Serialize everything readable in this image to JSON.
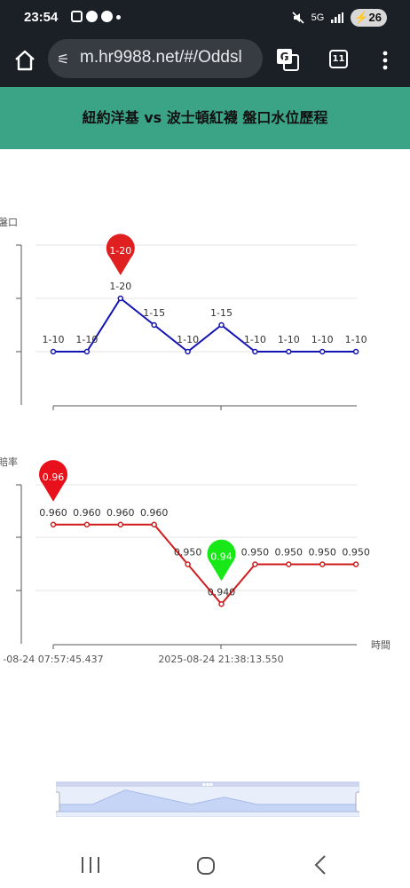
{
  "status_bar": {
    "time": "23:54",
    "network": "5G",
    "battery": "26"
  },
  "browser": {
    "url": "m.hr9988.net/#/Oddsl",
    "tab_count": "11"
  },
  "page": {
    "title": "紐約洋基 vs 波士頓紅襪 盤口水位歷程"
  },
  "chart_data": [
    {
      "type": "line",
      "ylabel": "盤口",
      "color": "#1414b4",
      "x_index": [
        0,
        1,
        2,
        3,
        4,
        5,
        6,
        7,
        8,
        9
      ],
      "labels": [
        "1-10",
        "1-10",
        "1-20",
        "1-15",
        "1-10",
        "1-15",
        "1-10",
        "1-10",
        "1-10",
        "1-10"
      ],
      "values": [
        10,
        10,
        20,
        15,
        10,
        15,
        10,
        10,
        10,
        10
      ],
      "ylim": [
        0,
        30
      ],
      "max_marker": {
        "index": 2,
        "label": "1-20",
        "color": "#e02020"
      },
      "grid": true
    },
    {
      "type": "line",
      "ylabel": "賠率",
      "xlabel": "時間",
      "color": "#d01c1c",
      "labels": [
        "0.960",
        "0.960",
        "0.960",
        "0.960",
        "0.950",
        "0.940",
        "0.950",
        "0.950",
        "0.950",
        "0.950"
      ],
      "values": [
        0.96,
        0.96,
        0.96,
        0.96,
        0.95,
        0.94,
        0.95,
        0.95,
        0.95,
        0.95
      ],
      "ylim": [
        0.93,
        0.97
      ],
      "max_marker": {
        "index": 0,
        "label": "0.96",
        "color": "#e8101a"
      },
      "min_marker": {
        "index": 5,
        "label": "0.94",
        "color": "#18e818"
      },
      "x_tick_labels": [
        "-08-24 07:57:45.437",
        "2025-08-24 21:38:13.550"
      ],
      "grid": true
    }
  ],
  "zoom": {
    "series": [
      10,
      10,
      20,
      15,
      10,
      15,
      10,
      10,
      10,
      10
    ]
  }
}
